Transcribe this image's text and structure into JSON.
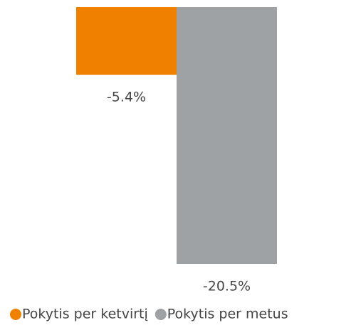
{
  "chart_data": {
    "type": "bar",
    "categories": [
      null
    ],
    "series": [
      {
        "name": "Pokytis per ketvirtį",
        "color": "#f08000",
        "values": [
          -5.4
        ],
        "value_labels": [
          "-5.4%"
        ]
      },
      {
        "name": "Pokytis per metus",
        "color": "#9ea2a5",
        "values": [
          -20.5
        ],
        "value_labels": [
          "-20.5%"
        ]
      }
    ],
    "legend": "bottom"
  }
}
